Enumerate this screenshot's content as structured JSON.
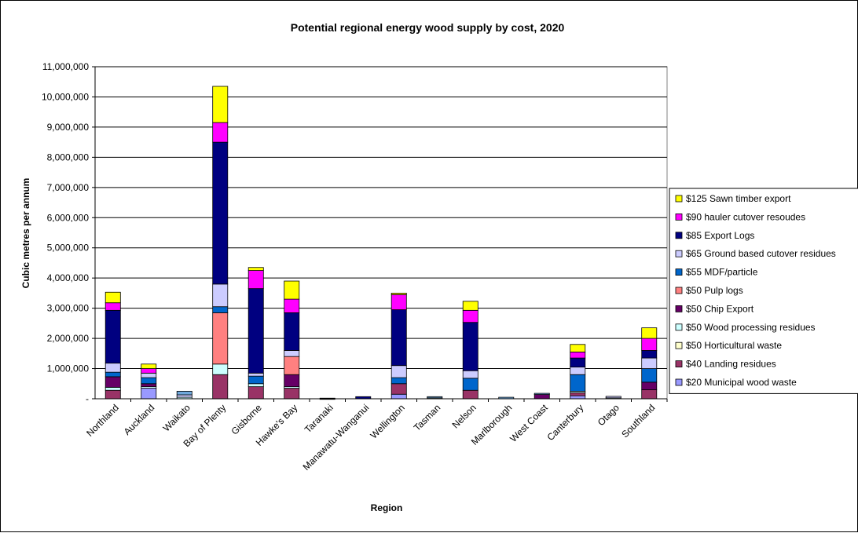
{
  "chart_data": {
    "type": "bar",
    "stacked": true,
    "title": "Potential regional energy wood supply by cost, 2020",
    "xlabel": "Region",
    "ylabel": "Cubic metres per annum",
    "ylim": [
      0,
      11000000
    ],
    "y_ticks": [
      0,
      1000000,
      2000000,
      3000000,
      4000000,
      5000000,
      6000000,
      7000000,
      8000000,
      9000000,
      10000000,
      11000000
    ],
    "y_tick_labels": [
      "-",
      "1,000,000",
      "2,000,000",
      "3,000,000",
      "4,000,000",
      "5,000,000",
      "6,000,000",
      "7,000,000",
      "8,000,000",
      "9,000,000",
      "10,000,000",
      "11,000,000"
    ],
    "grid": "horizontal major gridlines",
    "legend_position": "right",
    "categories": [
      "Northland",
      "Auckland",
      "Waikato",
      "Bay of Plenty",
      "Gisborne",
      "Hawke's Bay",
      "Taranaki",
      "Manawatu-Wanganui",
      "Wellington",
      "Tasman",
      "Nelson",
      "Marlborough",
      "West Coast",
      "Canterbury",
      "Otago",
      "Southland"
    ],
    "series": [
      {
        "name": "$20 Municipal wood waste",
        "color": "#9999ff",
        "values": [
          0,
          350000,
          0,
          0,
          0,
          0,
          0,
          0,
          150000,
          0,
          0,
          0,
          0,
          100000,
          0,
          0
        ]
      },
      {
        "name": "$40 Landing residues",
        "color": "#993366",
        "values": [
          280000,
          0,
          0,
          800000,
          400000,
          350000,
          0,
          0,
          350000,
          0,
          280000,
          0,
          0,
          100000,
          0,
          300000
        ]
      },
      {
        "name": "$50 Horticultural waste",
        "color": "#ffffcc",
        "values": [
          0,
          0,
          0,
          0,
          0,
          0,
          0,
          0,
          0,
          0,
          0,
          0,
          0,
          0,
          0,
          0
        ]
      },
      {
        "name": "$50 Wood processing residues",
        "color": "#ccffff",
        "values": [
          100000,
          50000,
          50000,
          350000,
          100000,
          50000,
          0,
          0,
          0,
          30000,
          0,
          0,
          0,
          50000,
          30000,
          0
        ]
      },
      {
        "name": "$50 Chip Export",
        "color": "#660066",
        "values": [
          350000,
          100000,
          0,
          0,
          0,
          400000,
          0,
          0,
          0,
          0,
          0,
          0,
          150000,
          0,
          0,
          250000
        ]
      },
      {
        "name": "$50 Pulp logs",
        "color": "#ff8080",
        "values": [
          0,
          0,
          0,
          1700000,
          0,
          600000,
          0,
          0,
          0,
          0,
          0,
          0,
          0,
          0,
          0,
          0
        ]
      },
      {
        "name": "$55 MDF/particle",
        "color": "#0066cc",
        "values": [
          150000,
          200000,
          0,
          200000,
          250000,
          0,
          0,
          0,
          200000,
          0,
          400000,
          0,
          0,
          550000,
          0,
          450000
        ]
      },
      {
        "name": "$65 Ground based cutover residues",
        "color": "#ccccff",
        "values": [
          300000,
          150000,
          80000,
          750000,
          100000,
          200000,
          0,
          0,
          400000,
          0,
          250000,
          0,
          0,
          250000,
          50000,
          350000
        ]
      },
      {
        "name": "$85 Export Logs",
        "color": "#000080",
        "values": [
          1750000,
          0,
          0,
          4700000,
          2800000,
          1250000,
          0,
          70000,
          1850000,
          0,
          1600000,
          0,
          0,
          300000,
          0,
          250000
        ]
      },
      {
        "name": "$90 hauler cutover resoudes",
        "color": "#ff00ff",
        "values": [
          250000,
          150000,
          0,
          650000,
          600000,
          450000,
          0,
          0,
          500000,
          0,
          400000,
          0,
          0,
          200000,
          0,
          400000
        ]
      },
      {
        "name": "$125 Sawn timber export",
        "color": "#ffff00",
        "values": [
          350000,
          150000,
          0,
          1200000,
          100000,
          600000,
          0,
          0,
          50000,
          0,
          300000,
          0,
          0,
          250000,
          0,
          350000
        ]
      }
    ],
    "residual_totals": [
      0,
      0,
      120000,
      0,
      0,
      0,
      20000,
      0,
      0,
      40000,
      0,
      50000,
      30000,
      0,
      0,
      0
    ]
  }
}
